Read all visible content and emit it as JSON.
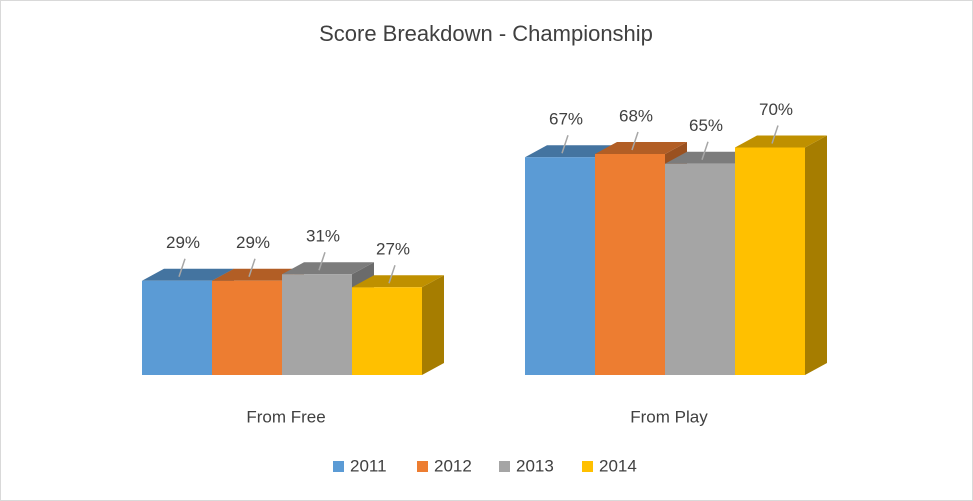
{
  "chart_data": {
    "type": "bar3d",
    "title": "Score Breakdown - Championship",
    "categories": [
      "From Free",
      "From Play"
    ],
    "series": [
      {
        "name": "2011",
        "color": "#5b9bd5",
        "values": [
          29,
          67
        ],
        "value_labels": [
          "29%",
          "67%"
        ]
      },
      {
        "name": "2012",
        "color": "#ed7d31",
        "values": [
          29,
          68
        ],
        "value_labels": [
          "29%",
          "68%"
        ]
      },
      {
        "name": "2013",
        "color": "#a5a5a5",
        "values": [
          31,
          65
        ],
        "value_labels": [
          "31%",
          "65%"
        ]
      },
      {
        "name": "2014",
        "color": "#ffc000",
        "values": [
          27,
          70
        ],
        "value_labels": [
          "27%",
          "70%"
        ]
      }
    ],
    "legend": "bottom"
  }
}
